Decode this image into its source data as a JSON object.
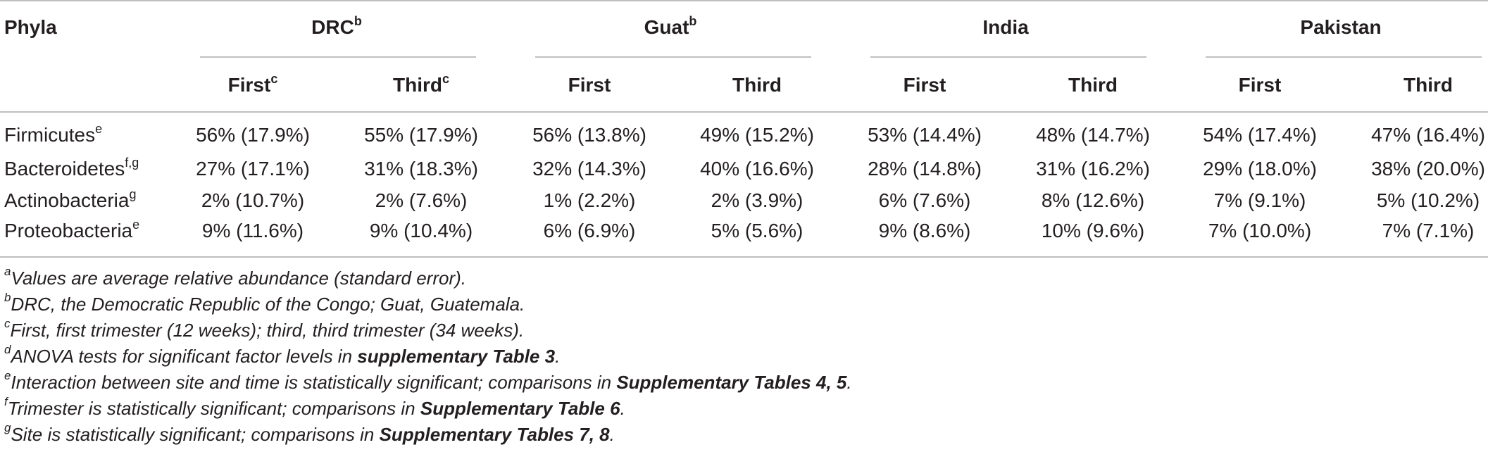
{
  "table": {
    "corner_label": "Phyla",
    "groups": [
      {
        "label": "DRC",
        "sup": "b"
      },
      {
        "label": "Guat",
        "sup": "b"
      },
      {
        "label": "India",
        "sup": ""
      },
      {
        "label": "Pakistan",
        "sup": ""
      }
    ],
    "subheaders": [
      {
        "label": "First",
        "sup": "c"
      },
      {
        "label": "Third",
        "sup": "c"
      },
      {
        "label": "First",
        "sup": ""
      },
      {
        "label": "Third",
        "sup": ""
      },
      {
        "label": "First",
        "sup": ""
      },
      {
        "label": "Third",
        "sup": ""
      },
      {
        "label": "First",
        "sup": ""
      },
      {
        "label": "Third",
        "sup": ""
      }
    ],
    "rows": [
      {
        "name": "Firmicutes",
        "sup": "e",
        "values": [
          "56% (17.9%)",
          "55% (17.9%)",
          "56% (13.8%)",
          "49% (15.2%)",
          "53% (14.4%)",
          "48% (14.7%)",
          "54% (17.4%)",
          "47% (16.4%)"
        ]
      },
      {
        "name": "Bacteroidetes",
        "sup": "f,g",
        "values": [
          "27% (17.1%)",
          "31% (18.3%)",
          "32% (14.3%)",
          "40% (16.6%)",
          "28% (14.8%)",
          "31% (16.2%)",
          "29% (18.0%)",
          "38% (20.0%)"
        ]
      },
      {
        "name": "Actinobacteria",
        "sup": "g",
        "values": [
          "2% (10.7%)",
          "2% (7.6%)",
          "1% (2.2%)",
          "2% (3.9%)",
          "6% (7.6%)",
          "8% (12.6%)",
          "7% (9.1%)",
          "5% (10.2%)"
        ]
      },
      {
        "name": "Proteobacteria",
        "sup": "e",
        "values": [
          "9% (11.6%)",
          "9% (10.4%)",
          "6% (6.9%)",
          "5% (5.6%)",
          "9% (8.6%)",
          "10% (9.6%)",
          "7% (10.0%)",
          "7% (7.1%)"
        ]
      }
    ]
  },
  "footnotes": [
    {
      "mark": "a",
      "text": "Values are average relative abundance (standard error).",
      "bold": ""
    },
    {
      "mark": "b",
      "text": "DRC, the Democratic Republic of the Congo; Guat, Guatemala.",
      "bold": ""
    },
    {
      "mark": "c",
      "text": "First, first trimester (12 weeks); third, third trimester (34 weeks).",
      "bold": ""
    },
    {
      "mark": "d",
      "text": "ANOVA tests for significant factor levels in ",
      "bold": "supplementary Table 3",
      "after": "."
    },
    {
      "mark": "e",
      "text": "Interaction between site and time is statistically significant; comparisons in ",
      "bold": "Supplementary Tables 4, 5",
      "after": "."
    },
    {
      "mark": "f",
      "text": "Trimester is statistically significant; comparisons in ",
      "bold": "Supplementary Table 6",
      "after": "."
    },
    {
      "mark": "g",
      "text": "Site is statistically significant; comparisons in ",
      "bold": "Supplementary Tables 7, 8",
      "after": "."
    }
  ]
}
